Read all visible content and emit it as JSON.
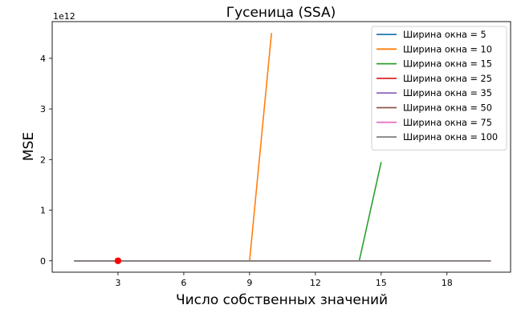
{
  "chart_data": {
    "type": "line",
    "title": "Гусеница (SSA)",
    "xlabel": "Число собственных значений",
    "ylabel": "MSE",
    "y_offset_label": "1e12",
    "xlim": [
      0,
      20.9
    ],
    "ylim": [
      -0.225,
      4.725
    ],
    "x_ticks": [
      3,
      6,
      9,
      12,
      15,
      18
    ],
    "y_ticks": [
      0,
      1,
      2,
      3,
      4
    ],
    "grid": false,
    "legend_position": "top-right",
    "series": [
      {
        "name": "Ширина окна = 5",
        "color": "#1f77b4",
        "x": [
          1,
          2,
          3,
          4
        ],
        "y": [
          0,
          0,
          0,
          0
        ]
      },
      {
        "name": "Ширина окна = 10",
        "color": "#ff7f0e",
        "x": [
          1,
          2,
          3,
          4,
          5,
          6,
          7,
          8,
          9,
          10
        ],
        "y": [
          0,
          0,
          0,
          0,
          0,
          0,
          0,
          0,
          0,
          4.5
        ]
      },
      {
        "name": "Ширина окна = 15",
        "color": "#2ca02c",
        "x": [
          1,
          2,
          3,
          4,
          5,
          6,
          7,
          8,
          9,
          10,
          11,
          12,
          13,
          14,
          15
        ],
        "y": [
          0,
          0,
          0,
          0,
          0,
          0,
          0,
          0,
          0,
          0,
          0,
          0,
          0,
          0,
          1.95
        ]
      },
      {
        "name": "Ширина окна = 25",
        "color": "#d62728",
        "x": [
          1,
          2,
          3,
          4,
          5,
          6,
          7,
          8,
          9,
          10,
          11,
          12,
          13,
          14,
          15,
          16,
          17,
          18,
          19,
          20
        ],
        "y": [
          0,
          0,
          0,
          0,
          0,
          0,
          0,
          0,
          0,
          0,
          0,
          0,
          0,
          0,
          0,
          0,
          0,
          0,
          0,
          0
        ]
      },
      {
        "name": "Ширина окна = 35",
        "color": "#9467bd",
        "x": [
          1,
          2,
          3,
          4,
          5,
          6,
          7,
          8,
          9,
          10,
          11,
          12,
          13,
          14,
          15,
          16,
          17,
          18,
          19,
          20
        ],
        "y": [
          0,
          0,
          0,
          0,
          0,
          0,
          0,
          0,
          0,
          0,
          0,
          0,
          0,
          0,
          0,
          0,
          0,
          0,
          0,
          0
        ]
      },
      {
        "name": "Ширина окна = 50",
        "color": "#8c564b",
        "x": [
          1,
          2,
          3,
          4,
          5,
          6,
          7,
          8,
          9,
          10,
          11,
          12,
          13,
          14,
          15,
          16,
          17,
          18,
          19,
          20
        ],
        "y": [
          0,
          0,
          0,
          0,
          0,
          0,
          0,
          0,
          0,
          0,
          0,
          0,
          0,
          0,
          0,
          0,
          0,
          0,
          0,
          0
        ]
      },
      {
        "name": "Ширина окна = 75",
        "color": "#e377c2",
        "x": [
          1,
          2,
          3,
          4,
          5,
          6,
          7,
          8,
          9,
          10,
          11,
          12,
          13,
          14,
          15,
          16,
          17,
          18,
          19,
          20
        ],
        "y": [
          0,
          0,
          0,
          0,
          0,
          0,
          0,
          0,
          0,
          0,
          0,
          0,
          0,
          0,
          0,
          0,
          0,
          0,
          0,
          0
        ]
      },
      {
        "name": "Ширина окна = 100",
        "color": "#7f7f7f",
        "x": [
          1,
          2,
          3,
          4,
          5,
          6,
          7,
          8,
          9,
          10,
          11,
          12,
          13,
          14,
          15,
          16,
          17,
          18,
          19,
          20
        ],
        "y": [
          0,
          0,
          0,
          0,
          0,
          0,
          0,
          0,
          0,
          0,
          0,
          0,
          0,
          0,
          0,
          0,
          0,
          0,
          0,
          0
        ]
      }
    ],
    "highlight_point": {
      "x": 3,
      "y": 0,
      "color": "#ff0000"
    }
  }
}
